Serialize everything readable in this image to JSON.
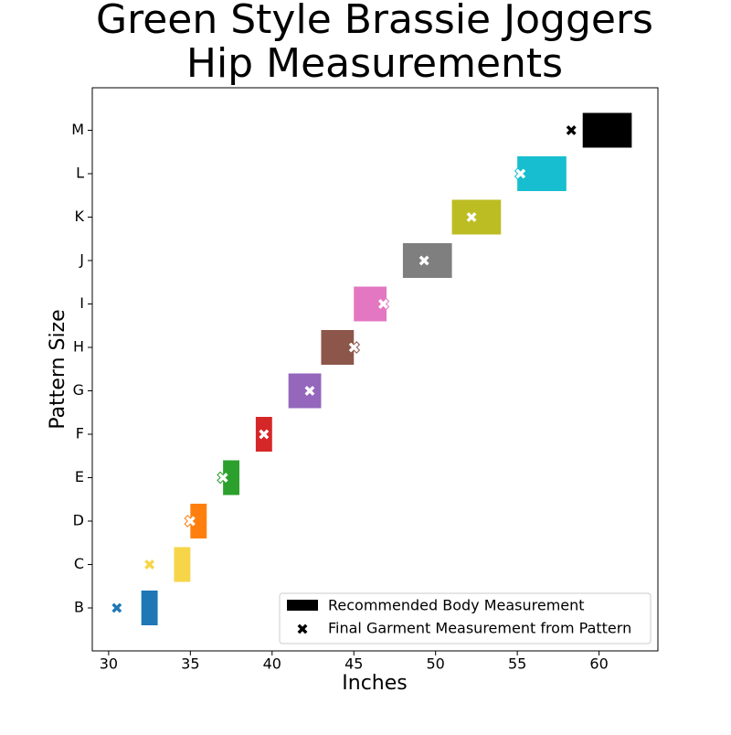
{
  "chart_data": {
    "type": "range",
    "title": [
      "Green Style Brassie Joggers",
      "Hip Measurements"
    ],
    "x_label": "Inches",
    "y_label": "Pattern Size",
    "categories": [
      "B",
      "C",
      "D",
      "E",
      "F",
      "G",
      "H",
      "I",
      "J",
      "K",
      "L",
      "M"
    ],
    "colors": [
      "#1f77b4",
      "#f7d548",
      "#ff7f0e",
      "#2ca02c",
      "#d62728",
      "#9467bd",
      "#8c564b",
      "#e377c2",
      "#7f7f7f",
      "#bcbd22",
      "#17becf",
      "#000000"
    ],
    "series": [
      {
        "name": "Recommended Body Measurement",
        "color": "#000000",
        "low": [
          32,
          34,
          35,
          37,
          39,
          41,
          43,
          45,
          48,
          51,
          55,
          59
        ],
        "high": [
          33,
          35,
          36,
          38,
          40,
          43,
          45,
          47,
          51,
          54,
          58,
          62
        ]
      },
      {
        "name": "Final Garment Measurement from Pattern",
        "color": "#000000",
        "values": [
          30.5,
          32.5,
          35,
          37,
          39.5,
          42.3,
          45,
          46.8,
          49.3,
          52.2,
          55.2,
          58.3
        ]
      }
    ],
    "xlim": [
      29,
      63.6
    ],
    "xticks": [
      30,
      35,
      40,
      45,
      50,
      55,
      60
    ],
    "legend": "lower right"
  }
}
